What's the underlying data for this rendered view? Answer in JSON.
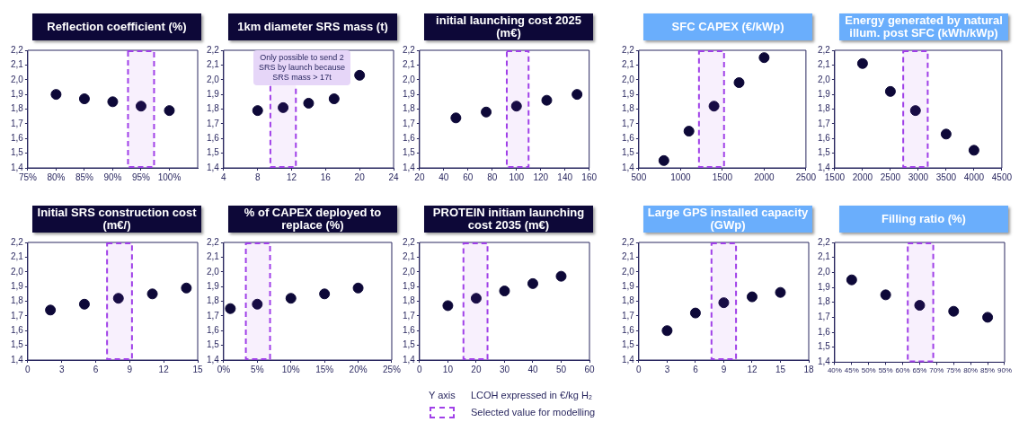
{
  "chart_data": [
    {
      "type": "scatter",
      "title": "Reflection coefficient (%)",
      "x": [
        80,
        85,
        90,
        95,
        100
      ],
      "values": [
        1.9,
        1.87,
        1.85,
        1.82,
        1.79
      ],
      "color": "#0d0838",
      "marker": "circle",
      "xlim": [
        75,
        105
      ],
      "xticks": [
        {
          "value": 75,
          "label": "75%"
        },
        {
          "value": 80,
          "label": "80%"
        },
        {
          "value": 85,
          "label": "85%"
        },
        {
          "value": 90,
          "label": "90%"
        },
        {
          "value": 95,
          "label": "95%"
        },
        {
          "value": 100,
          "label": "100%"
        }
      ],
      "ylim": [
        1.4,
        2.2
      ],
      "yticks": [
        {
          "value": 1.4,
          "label": "1,4"
        },
        {
          "value": 1.5,
          "label": "1,5"
        },
        {
          "value": 1.6,
          "label": "1,6"
        },
        {
          "value": 1.7,
          "label": "1,7"
        },
        {
          "value": 1.8,
          "label": "1,8"
        },
        {
          "value": 1.9,
          "label": "1,9"
        },
        {
          "value": 2.0,
          "label": "2,0"
        },
        {
          "value": 2.1,
          "label": "2,1"
        },
        {
          "value": 2.2,
          "label": "2,2"
        }
      ],
      "grid": false,
      "bands": [
        {
          "axis": "x",
          "from": 92.7,
          "to": 97.3,
          "color": "#a040e8"
        }
      ]
    },
    {
      "type": "scatter",
      "title": "1km diameter SRS mass (t)",
      "x": [
        8,
        11,
        14,
        17,
        20
      ],
      "values": [
        1.79,
        1.81,
        1.84,
        1.87,
        2.03
      ],
      "color": "#0d0838",
      "marker": "circle",
      "xlim": [
        4,
        24
      ],
      "xticks": [
        4,
        8,
        12,
        16,
        20,
        24
      ],
      "ylim": [
        1.4,
        2.2
      ],
      "yticks": [
        {
          "value": 1.4,
          "label": "1,4"
        },
        {
          "value": 1.5,
          "label": "1,5"
        },
        {
          "value": 1.6,
          "label": "1,6"
        },
        {
          "value": 1.7,
          "label": "1,7"
        },
        {
          "value": 1.8,
          "label": "1,8"
        },
        {
          "value": 1.9,
          "label": "1,9"
        },
        {
          "value": 2.0,
          "label": "2,0"
        },
        {
          "value": 2.1,
          "label": "2,1"
        },
        {
          "value": 2.2,
          "label": "2,2"
        }
      ],
      "grid": false,
      "bands": [
        {
          "axis": "x",
          "from": 9.5,
          "to": 12.5,
          "color": "#a040e8"
        }
      ],
      "annotations": [
        "Only possible to send 2 SRS by launch because SRS mass > 17t"
      ]
    },
    {
      "type": "scatter",
      "title": "initial launching cost 2025 (m€)",
      "x": [
        50,
        75,
        100,
        125,
        150
      ],
      "values": [
        1.74,
        1.78,
        1.82,
        1.86,
        1.9
      ],
      "color": "#0d0838",
      "marker": "circle",
      "xlim": [
        20,
        160
      ],
      "xticks": [
        20,
        40,
        60,
        80,
        100,
        120,
        140,
        160
      ],
      "ylim": [
        1.4,
        2.2
      ],
      "yticks": [
        {
          "value": 1.4,
          "label": "1,4"
        },
        {
          "value": 1.5,
          "label": "1,5"
        },
        {
          "value": 1.6,
          "label": "1,6"
        },
        {
          "value": 1.7,
          "label": "1,7"
        },
        {
          "value": 1.8,
          "label": "1,8"
        },
        {
          "value": 1.9,
          "label": "1,9"
        },
        {
          "value": 2.0,
          "label": "2,0"
        },
        {
          "value": 2.1,
          "label": "2,1"
        },
        {
          "value": 2.2,
          "label": "2,2"
        }
      ],
      "grid": false,
      "bands": [
        {
          "axis": "x",
          "from": 92,
          "to": 110,
          "color": "#a040e8"
        }
      ]
    },
    {
      "type": "scatter",
      "title": "SFC CAPEX (€/kWp)",
      "x": [
        800,
        1100,
        1400,
        1700,
        2000
      ],
      "values": [
        1.45,
        1.65,
        1.82,
        1.98,
        2.15
      ],
      "color": "#0d0838",
      "marker": "circle",
      "xlim": [
        500,
        2500
      ],
      "xticks": [
        500,
        1000,
        1500,
        2000,
        2500
      ],
      "ylim": [
        1.4,
        2.2
      ],
      "yticks": [
        {
          "value": 1.4,
          "label": "1,4"
        },
        {
          "value": 1.5,
          "label": "1,5"
        },
        {
          "value": 1.6,
          "label": "1,6"
        },
        {
          "value": 1.7,
          "label": "1,7"
        },
        {
          "value": 1.8,
          "label": "1,8"
        },
        {
          "value": 1.9,
          "label": "1,9"
        },
        {
          "value": 2.0,
          "label": "2,0"
        },
        {
          "value": 2.1,
          "label": "2,1"
        },
        {
          "value": 2.2,
          "label": "2,2"
        }
      ],
      "grid": false,
      "bands": [
        {
          "axis": "x",
          "from": 1220,
          "to": 1520,
          "color": "#a040e8"
        }
      ]
    },
    {
      "type": "scatter",
      "title": "Energy generated by natural illum. post SFC (kWh/kWp)",
      "x": [
        2000,
        2500,
        2950,
        3500,
        4000
      ],
      "values": [
        2.11,
        1.92,
        1.79,
        1.63,
        1.52
      ],
      "color": "#0d0838",
      "marker": "circle",
      "xlim": [
        1500,
        4500
      ],
      "xticks": [
        1500,
        2000,
        2500,
        3000,
        3500,
        4000,
        4500
      ],
      "ylim": [
        1.4,
        2.2
      ],
      "yticks": [
        {
          "value": 1.4,
          "label": "1,4"
        },
        {
          "value": 1.5,
          "label": "1,5"
        },
        {
          "value": 1.6,
          "label": "1,6"
        },
        {
          "value": 1.7,
          "label": "1,7"
        },
        {
          "value": 1.8,
          "label": "1,8"
        },
        {
          "value": 1.9,
          "label": "1,9"
        },
        {
          "value": 2.0,
          "label": "2,0"
        },
        {
          "value": 2.1,
          "label": "2,1"
        },
        {
          "value": 2.2,
          "label": "2,2"
        }
      ],
      "grid": false,
      "bands": [
        {
          "axis": "x",
          "from": 2730,
          "to": 3170,
          "color": "#a040e8"
        }
      ]
    },
    {
      "type": "scatter",
      "title": "Initial SRS construction cost (m€/)",
      "x": [
        2,
        5,
        8,
        11,
        14
      ],
      "values": [
        1.74,
        1.78,
        1.82,
        1.85,
        1.89
      ],
      "color": "#0d0838",
      "marker": "circle",
      "xlim": [
        0,
        15
      ],
      "xticks": [
        0,
        3,
        6,
        9,
        12,
        15
      ],
      "ylim": [
        1.4,
        2.2
      ],
      "yticks": [
        {
          "value": 1.4,
          "label": "1,4"
        },
        {
          "value": 1.5,
          "label": "1,5"
        },
        {
          "value": 1.6,
          "label": "1,6"
        },
        {
          "value": 1.7,
          "label": "1,7"
        },
        {
          "value": 1.8,
          "label": "1,8"
        },
        {
          "value": 1.9,
          "label": "1,9"
        },
        {
          "value": 2.0,
          "label": "2,0"
        },
        {
          "value": 2.1,
          "label": "2,1"
        },
        {
          "value": 2.2,
          "label": "2,2"
        }
      ],
      "grid": false,
      "bands": [
        {
          "axis": "x",
          "from": 7,
          "to": 9.2,
          "color": "#a040e8"
        }
      ]
    },
    {
      "type": "scatter",
      "title": "% of CAPEX deployed to replace (%)",
      "x": [
        1,
        5,
        10,
        15,
        20
      ],
      "values": [
        1.75,
        1.78,
        1.82,
        1.85,
        1.89
      ],
      "color": "#0d0838",
      "marker": "circle",
      "xlim": [
        0,
        25
      ],
      "xticks": [
        {
          "value": 0,
          "label": "0%"
        },
        {
          "value": 5,
          "label": "5%"
        },
        {
          "value": 10,
          "label": "10%"
        },
        {
          "value": 15,
          "label": "15%"
        },
        {
          "value": 20,
          "label": "20%"
        },
        {
          "value": 25,
          "label": "25%"
        }
      ],
      "ylim": [
        1.4,
        2.2
      ],
      "yticks": [
        {
          "value": 1.4,
          "label": "1,4"
        },
        {
          "value": 1.5,
          "label": "1,5"
        },
        {
          "value": 1.6,
          "label": "1,6"
        },
        {
          "value": 1.7,
          "label": "1,7"
        },
        {
          "value": 1.8,
          "label": "1,8"
        },
        {
          "value": 1.9,
          "label": "1,9"
        },
        {
          "value": 2.0,
          "label": "2,0"
        },
        {
          "value": 2.1,
          "label": "2,1"
        },
        {
          "value": 2.2,
          "label": "2,2"
        }
      ],
      "grid": false,
      "bands": [
        {
          "axis": "x",
          "from": 3.3,
          "to": 6.9,
          "color": "#a040e8"
        }
      ]
    },
    {
      "type": "scatter",
      "title": "PROTEIN initiam launching cost 2035 (m€)",
      "x": [
        10,
        20,
        30,
        40,
        50
      ],
      "values": [
        1.77,
        1.82,
        1.87,
        1.92,
        1.97
      ],
      "color": "#0d0838",
      "marker": "circle",
      "xlim": [
        0,
        60
      ],
      "xticks": [
        0,
        10,
        20,
        30,
        40,
        50,
        60
      ],
      "ylim": [
        1.4,
        2.2
      ],
      "yticks": [
        {
          "value": 1.4,
          "label": "1,4"
        },
        {
          "value": 1.5,
          "label": "1,5"
        },
        {
          "value": 1.6,
          "label": "1,6"
        },
        {
          "value": 1.7,
          "label": "1,7"
        },
        {
          "value": 1.8,
          "label": "1,8"
        },
        {
          "value": 1.9,
          "label": "1,9"
        },
        {
          "value": 2.0,
          "label": "2,0"
        },
        {
          "value": 2.1,
          "label": "2,1"
        },
        {
          "value": 2.2,
          "label": "2,2"
        }
      ],
      "grid": false,
      "bands": [
        {
          "axis": "x",
          "from": 15.5,
          "to": 24,
          "color": "#a040e8"
        }
      ]
    },
    {
      "type": "scatter",
      "title": "Large GPS installed capacity (GWp)",
      "x": [
        3,
        6,
        9,
        12,
        15
      ],
      "values": [
        1.6,
        1.72,
        1.79,
        1.83,
        1.86
      ],
      "color": "#0d0838",
      "marker": "circle",
      "xlim": [
        0,
        18
      ],
      "xticks": [
        0,
        3,
        6,
        9,
        12,
        15,
        18
      ],
      "ylim": [
        1.4,
        2.2
      ],
      "yticks": [
        {
          "value": 1.4,
          "label": "1,4"
        },
        {
          "value": 1.5,
          "label": "1,5"
        },
        {
          "value": 1.6,
          "label": "1,6"
        },
        {
          "value": 1.7,
          "label": "1,7"
        },
        {
          "value": 1.8,
          "label": "1,8"
        },
        {
          "value": 1.9,
          "label": "1,9"
        },
        {
          "value": 2.0,
          "label": "2,0"
        },
        {
          "value": 2.1,
          "label": "2,1"
        },
        {
          "value": 2.2,
          "label": "2,2"
        }
      ],
      "grid": false,
      "bands": [
        {
          "axis": "x",
          "from": 7.7,
          "to": 10.3,
          "color": "#a040e8"
        }
      ]
    },
    {
      "type": "scatter",
      "title": "Filling ratio (%)",
      "x": [
        45,
        55,
        65,
        75,
        85
      ],
      "values": [
        1.95,
        1.85,
        1.78,
        1.74,
        1.7
      ],
      "color": "#0d0838",
      "marker": "circle",
      "xlim": [
        40,
        90
      ],
      "xticks": [
        {
          "value": 40,
          "label": "40%"
        },
        {
          "value": 45,
          "label": "45%"
        },
        {
          "value": 50,
          "label": "50%"
        },
        {
          "value": 55,
          "label": "55%"
        },
        {
          "value": 60,
          "label": "60%"
        },
        {
          "value": 65,
          "label": "65%"
        },
        {
          "value": 70,
          "label": "70%"
        },
        {
          "value": 75,
          "label": "75%"
        },
        {
          "value": 80,
          "label": "80%"
        },
        {
          "value": 85,
          "label": "85%"
        },
        {
          "value": 90,
          "label": "90%"
        }
      ],
      "ylim": [
        1.4,
        2.2
      ],
      "yticks": [
        {
          "value": 1.4,
          "label": "1,4"
        },
        {
          "value": 1.5,
          "label": "1,5"
        },
        {
          "value": 1.6,
          "label": "1,6"
        },
        {
          "value": 1.7,
          "label": "1,7"
        },
        {
          "value": 1.8,
          "label": "1,8"
        },
        {
          "value": 1.9,
          "label": "1,9"
        },
        {
          "value": 2.0,
          "label": "2,0"
        },
        {
          "value": 2.1,
          "label": "2,1"
        },
        {
          "value": 2.2,
          "label": "2,2"
        }
      ],
      "grid": false,
      "bands": [
        {
          "axis": "x",
          "from": 61.5,
          "to": 69,
          "color": "#a040e8"
        }
      ]
    },
    {
      "type": "other",
      "annotations": [
        "Y axis",
        "LCOH expressed in €/kg H₂",
        "Selected value for modelling"
      ]
    }
  ]
}
